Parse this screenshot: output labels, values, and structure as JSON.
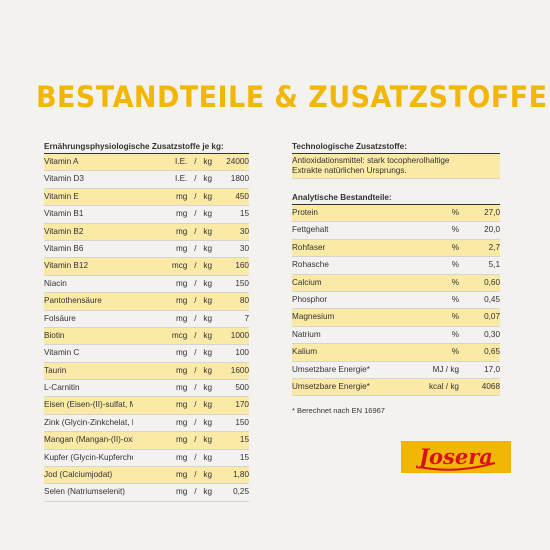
{
  "title": "BESTANDTEILE & ZUSATZSTOFFE",
  "left": {
    "heading": "Ernährungsphysiologische Zusatzstoffe je kg:",
    "rows": [
      {
        "name": "Vitamin A",
        "unit": "I.E.",
        "sep": "/",
        "per": "kg",
        "value": "24000"
      },
      {
        "name": "Vitamin D3",
        "unit": "I.E.",
        "sep": "/",
        "per": "kg",
        "value": "1800"
      },
      {
        "name": "Vitamin E",
        "unit": "mg",
        "sep": "/",
        "per": "kg",
        "value": "450"
      },
      {
        "name": "Vitamin B1",
        "unit": "mg",
        "sep": "/",
        "per": "kg",
        "value": "15"
      },
      {
        "name": "Vitamin B2",
        "unit": "mg",
        "sep": "/",
        "per": "kg",
        "value": "30"
      },
      {
        "name": "Vitamin B6",
        "unit": "mg",
        "sep": "/",
        "per": "kg",
        "value": "30"
      },
      {
        "name": "Vitamin B12",
        "unit": "mcg",
        "sep": "/",
        "per": "kg",
        "value": "160"
      },
      {
        "name": "Niacin",
        "unit": "mg",
        "sep": "/",
        "per": "kg",
        "value": "150"
      },
      {
        "name": "Pantothensäure",
        "unit": "mg",
        "sep": "/",
        "per": "kg",
        "value": "80"
      },
      {
        "name": "Folsäure",
        "unit": "mg",
        "sep": "/",
        "per": "kg",
        "value": "7"
      },
      {
        "name": "Biotin",
        "unit": "mcg",
        "sep": "/",
        "per": "kg",
        "value": "1000"
      },
      {
        "name": "Vitamin C",
        "unit": "mg",
        "sep": "/",
        "per": "kg",
        "value": "100"
      },
      {
        "name": "Taurin",
        "unit": "mg",
        "sep": "/",
        "per": "kg",
        "value": "1600"
      },
      {
        "name": "L-Carnitin",
        "unit": "mg",
        "sep": "/",
        "per": "kg",
        "value": "500"
      },
      {
        "name": "Eisen (Eisen-(II)-sulfat, Monohydrat)",
        "unit": "mg",
        "sep": "/",
        "per": "kg",
        "value": "170"
      },
      {
        "name": "Zink (Glycin-Zinkchelat, Hydrat)",
        "unit": "mg",
        "sep": "/",
        "per": "kg",
        "value": "150"
      },
      {
        "name": "Mangan (Mangan-(II)-oxid)",
        "unit": "mg",
        "sep": "/",
        "per": "kg",
        "value": "15"
      },
      {
        "name": "Kupfer (Glycin-Kupferchelat, Hydrat)",
        "unit": "mg",
        "sep": "/",
        "per": "kg",
        "value": "15"
      },
      {
        "name": "Jod (Calciumjodat)",
        "unit": "mg",
        "sep": "/",
        "per": "kg",
        "value": "1,80"
      },
      {
        "name": "Selen (Natriumselenit)",
        "unit": "mg",
        "sep": "/",
        "per": "kg",
        "value": "0,25"
      }
    ]
  },
  "right": {
    "tech_heading": "Technologische Zusatzstoffe:",
    "tech_line1": "Antioxidationsmittel: stark tocopherolhaltige",
    "tech_line2": "Extrakte natürlichen Ursprungs.",
    "analytic_heading": "Analytische Bestandteile:",
    "rows": [
      {
        "name": "Protein",
        "unit": "%",
        "value": "27,0"
      },
      {
        "name": "Fettgehalt",
        "unit": "%",
        "value": "20,0"
      },
      {
        "name": "Rohfaser",
        "unit": "%",
        "value": "2,7"
      },
      {
        "name": "Rohasche",
        "unit": "%",
        "value": "5,1"
      },
      {
        "name": "Calcium",
        "unit": "%",
        "value": "0,60"
      },
      {
        "name": "Phosphor",
        "unit": "%",
        "value": "0,45"
      },
      {
        "name": "Magnesium",
        "unit": "%",
        "value": "0,07"
      },
      {
        "name": "Natrium",
        "unit": "%",
        "value": "0,30"
      },
      {
        "name": "Kalium",
        "unit": "%",
        "value": "0,65"
      },
      {
        "name": "Umsetzbare Energie*",
        "unit": "MJ / kg",
        "value": "17,0"
      },
      {
        "name": "Umsetzbare Energie*",
        "unit": "kcal / kg",
        "value": "4068"
      }
    ],
    "footnote": "* Berechnet nach EN 16967"
  },
  "logo_text": "Josera",
  "colors": {
    "accent": "#f2b705",
    "highlight": "#fbe9a6",
    "logo_red": "#d4131b",
    "background": "#f3f2ef"
  }
}
